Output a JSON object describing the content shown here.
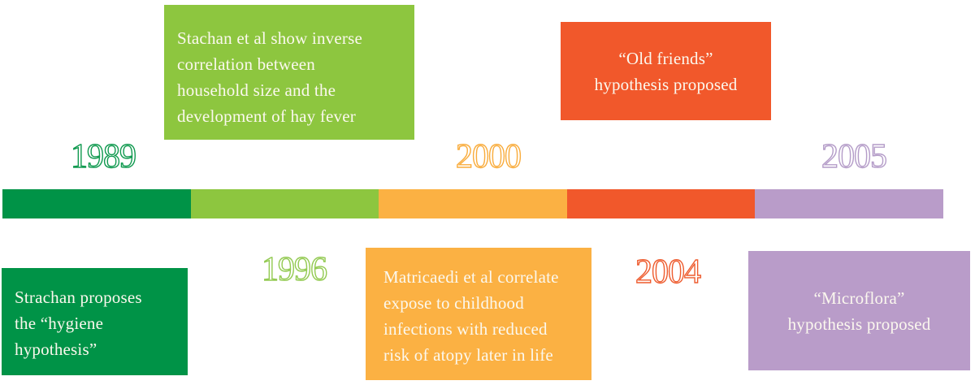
{
  "text_color": "#fbf8ee",
  "timeline": {
    "segments": [
      {
        "year": "1989",
        "color": "#009347"
      },
      {
        "year": "1996",
        "color": "#8dc63f"
      },
      {
        "year": "2000",
        "color": "#fbb143"
      },
      {
        "year": "2004",
        "color": "#f1582b"
      },
      {
        "year": "2005",
        "color": "#b99cc9"
      }
    ]
  },
  "year_labels": {
    "y1989": {
      "text": "1989",
      "color": "#119a50"
    },
    "y1996": {
      "text": "1996",
      "color": "#93ca52"
    },
    "y2000": {
      "text": "2000",
      "color": "#f9ac3c"
    },
    "y2004": {
      "text": "2004",
      "color": "#ee5c2f"
    },
    "y2005": {
      "text": "2005",
      "color": "#b49cc8"
    }
  },
  "events": {
    "stachan": {
      "text": "Stachan et al show inverse\ncorrelation between\nhousehold size and the\ndevelopment of hay fever",
      "color": "#8dc63f"
    },
    "hygiene": {
      "text": "Strachan proposes\nthe “hygiene\nhypothesis”",
      "color": "#009347"
    },
    "old_friends": {
      "text": "“Old friends”\nhypothesis proposed",
      "color": "#f1582b"
    },
    "matricaedi": {
      "text": "Matricaedi et al correlate\nexpose to childhood\ninfections with reduced\nrisk of atopy later in life",
      "color": "#fbb143"
    },
    "microflora": {
      "text": "“Microflora”\nhypothesis proposed",
      "color": "#b99cc9"
    }
  }
}
